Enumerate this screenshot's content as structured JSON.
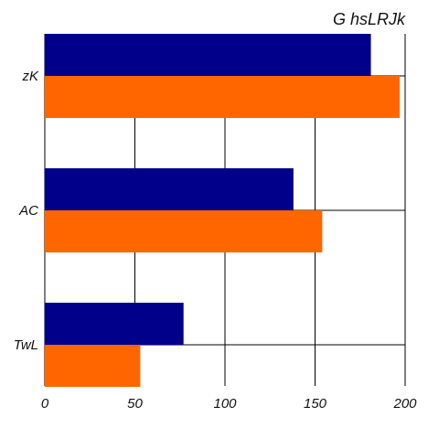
{
  "chart_data": {
    "type": "bar",
    "orientation": "horizontal",
    "title": "G  hsLRJk",
    "xlabel": "",
    "ylabel": "",
    "categories": [
      "zK",
      "AC",
      "TwL"
    ],
    "series": [
      {
        "values": [
          181,
          138,
          77
        ],
        "color": "#00008b"
      },
      {
        "values": [
          197,
          154,
          53
        ],
        "color": "#ff6600"
      }
    ],
    "xlim": [
      0,
      200
    ],
    "xticks": [
      0,
      50,
      100,
      150,
      200
    ],
    "xtick_labels": [
      "0",
      "50",
      "100",
      "150",
      "200"
    ],
    "grid": true
  }
}
